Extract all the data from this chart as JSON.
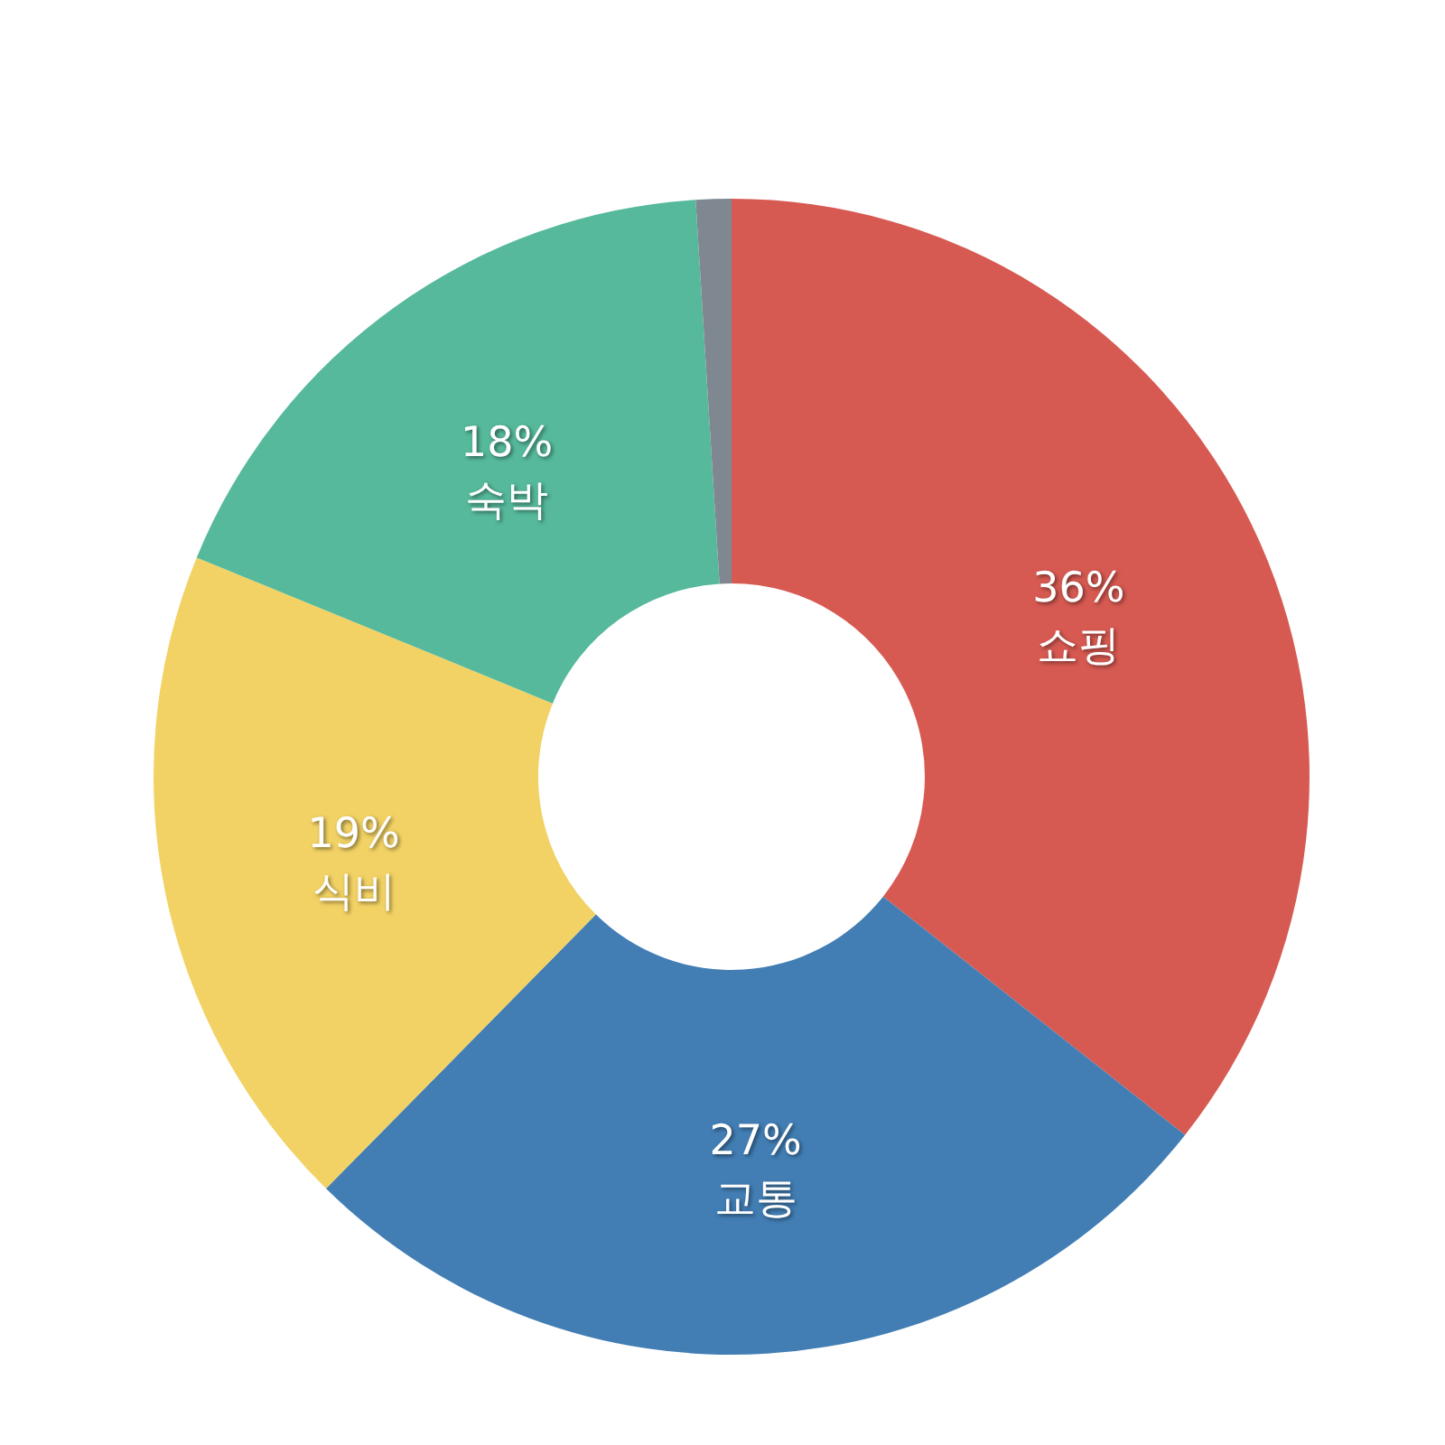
{
  "chart_data": {
    "type": "donut",
    "categories": [
      "쇼핑",
      "교통",
      "식비",
      "숙박",
      null
    ],
    "values": [
      36,
      27,
      19,
      18,
      1
    ],
    "value_labels": [
      "36%",
      "27%",
      "19%",
      "18%",
      null
    ],
    "colors": [
      "#d75a52",
      "#427eb4",
      "#f2d264",
      "#56b99c",
      "#7f8890"
    ]
  }
}
